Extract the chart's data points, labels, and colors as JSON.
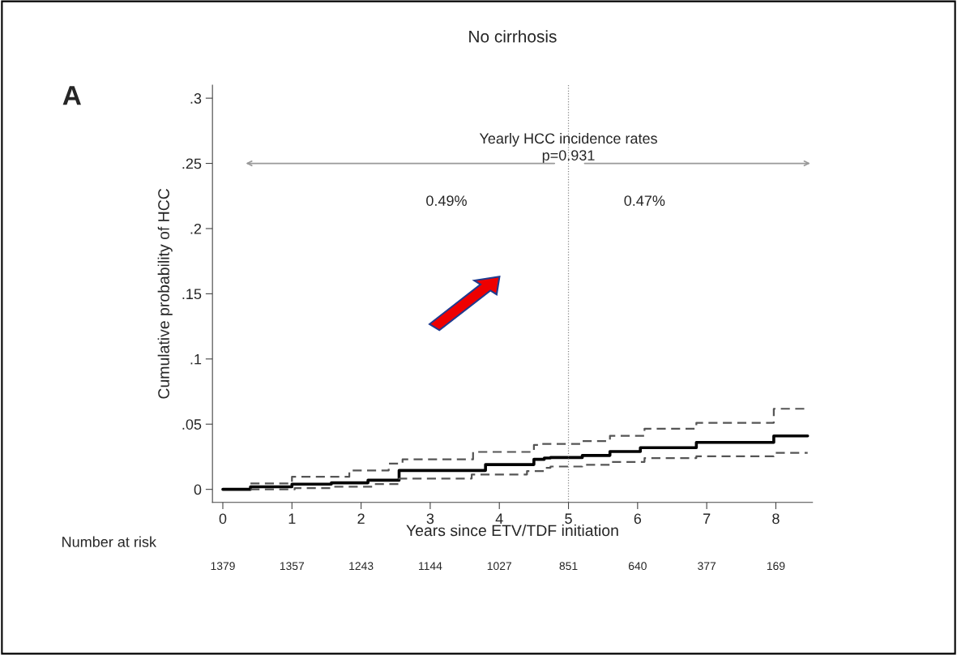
{
  "chart_data": {
    "type": "step",
    "title": "No cirrhosis",
    "xlabel": "Years since ETV/TDF initiation",
    "ylabel": "Cumulative probability of HCC",
    "series": [
      {
        "color": "#000000",
        "line_style": "solid",
        "x": [
          0,
          0.4,
          1.0,
          1.57,
          2.1,
          2.55,
          3.6,
          3.8,
          4.3,
          4.5,
          4.65,
          4.74,
          5.2,
          5.6,
          6.04,
          6.85,
          7.97,
          8.46
        ],
        "values": [
          0,
          0.002,
          0.004,
          0.005,
          0.007,
          0.0145,
          0.0145,
          0.019,
          0.019,
          0.023,
          0.024,
          0.0244,
          0.026,
          0.029,
          0.032,
          0.036,
          0.041,
          0.041
        ]
      },
      {
        "color": "#555555",
        "line_style": "dashed",
        "x": [
          0.4,
          1.0,
          1.83,
          2.4,
          2.6,
          3.62,
          4.5,
          4.6,
          5.2,
          5.6,
          6.1,
          6.85,
          7.97,
          8.46
        ],
        "values": [
          0.0045,
          0.0096,
          0.0145,
          0.0198,
          0.023,
          0.0287,
          0.034,
          0.0348,
          0.037,
          0.041,
          0.0465,
          0.051,
          0.0618,
          0.0618
        ]
      },
      {
        "color": "#555555",
        "line_style": "dashed",
        "x": [
          0.4,
          1.04,
          1.57,
          2.2,
          2.55,
          3.6,
          4.4,
          4.65,
          4.74,
          5.2,
          5.6,
          6.1,
          6.85,
          7.97,
          8.46
        ],
        "values": [
          0,
          0.001,
          0.002,
          0.004,
          0.0083,
          0.0114,
          0.014,
          0.0165,
          0.0175,
          0.0188,
          0.021,
          0.024,
          0.0254,
          0.028,
          0.028
        ]
      }
    ],
    "xlim": [
      -0.15,
      8.53
    ],
    "xticks": [
      0,
      1,
      2,
      3,
      4,
      5,
      6,
      7,
      8
    ],
    "ylim": [
      -0.01,
      0.31
    ],
    "yticks": [
      0,
      {
        "value": 0.05,
        "label": ".05"
      },
      {
        "value": 0.1,
        "label": ".1"
      },
      {
        "value": 0.15,
        "label": ".15"
      },
      {
        "value": 0.2,
        "label": ".2"
      },
      {
        "value": 0.25,
        "label": ".25"
      },
      {
        "value": 0.3,
        "label": ".3"
      }
    ],
    "ref_lines": [
      {
        "axis": "x",
        "value": 5,
        "line_style": "dotted",
        "color": "#888888"
      }
    ],
    "grid": false,
    "marker": "none",
    "annotations": [
      "A",
      "Number at risk",
      {
        "text": "Yearly HCC incidence rates\np=0.931",
        "x": 5,
        "y": 0.25
      },
      "0.49%",
      "0.47%",
      "1379",
      "1357",
      "1243",
      "1144",
      "1027",
      "851",
      "640",
      "377",
      "169"
    ]
  }
}
